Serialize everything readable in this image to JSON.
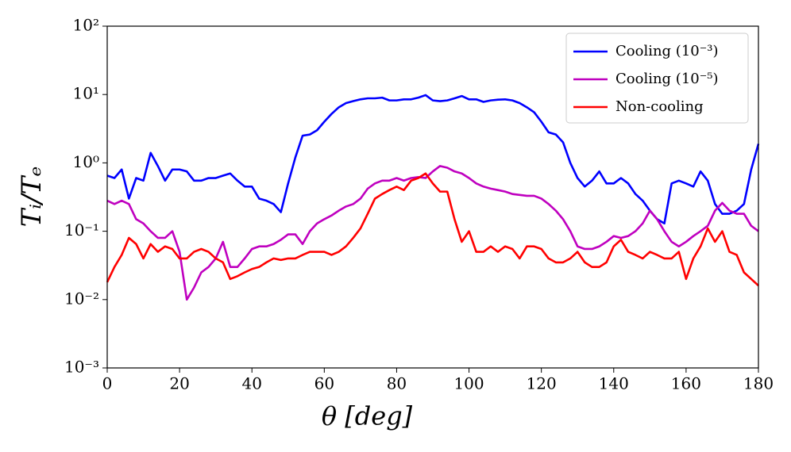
{
  "chart_data": {
    "type": "line",
    "x_label": "θ [deg]",
    "y_label": "Tᵢ/Tₑ",
    "x": [
      0,
      2,
      4,
      6,
      8,
      10,
      12,
      14,
      16,
      18,
      20,
      22,
      24,
      26,
      28,
      30,
      32,
      34,
      36,
      38,
      40,
      42,
      44,
      46,
      48,
      50,
      52,
      54,
      56,
      58,
      60,
      62,
      64,
      66,
      68,
      70,
      72,
      74,
      76,
      78,
      80,
      82,
      84,
      86,
      88,
      90,
      92,
      94,
      96,
      98,
      100,
      102,
      104,
      106,
      108,
      110,
      112,
      114,
      116,
      118,
      120,
      122,
      124,
      126,
      128,
      130,
      132,
      134,
      136,
      138,
      140,
      142,
      144,
      146,
      148,
      150,
      152,
      154,
      156,
      158,
      160,
      162,
      164,
      166,
      168,
      170,
      172,
      174,
      176,
      178,
      180
    ],
    "series": [
      {
        "name": "Cooling (10⁻³)",
        "color": "#0000ff",
        "values": [
          0.65,
          0.6,
          0.8,
          0.3,
          0.6,
          0.55,
          1.4,
          0.9,
          0.55,
          0.8,
          0.8,
          0.75,
          0.55,
          0.55,
          0.6,
          0.6,
          0.65,
          0.7,
          0.55,
          0.45,
          0.45,
          0.3,
          0.28,
          0.25,
          0.19,
          0.5,
          1.2,
          2.5,
          2.6,
          3.0,
          4.0,
          5.2,
          6.5,
          7.5,
          8.0,
          8.5,
          8.8,
          8.8,
          9.0,
          8.2,
          8.2,
          8.5,
          8.5,
          9.0,
          9.8,
          8.2,
          8.0,
          8.2,
          8.8,
          9.5,
          8.5,
          8.5,
          7.8,
          8.2,
          8.4,
          8.5,
          8.2,
          7.5,
          6.5,
          5.5,
          4.0,
          2.8,
          2.6,
          2.0,
          1.0,
          0.6,
          0.45,
          0.55,
          0.75,
          0.5,
          0.5,
          0.6,
          0.5,
          0.35,
          0.28,
          0.2,
          0.15,
          0.13,
          0.5,
          0.55,
          0.5,
          0.45,
          0.75,
          0.55,
          0.25,
          0.18,
          0.18,
          0.2,
          0.25,
          0.8,
          1.9
        ]
      },
      {
        "name": "Cooling (10⁻⁵)",
        "color": "#bf00bf",
        "values": [
          0.28,
          0.25,
          0.28,
          0.25,
          0.15,
          0.13,
          0.1,
          0.08,
          0.08,
          0.1,
          0.05,
          0.01,
          0.015,
          0.025,
          0.03,
          0.04,
          0.07,
          0.03,
          0.03,
          0.04,
          0.055,
          0.06,
          0.06,
          0.065,
          0.075,
          0.09,
          0.09,
          0.065,
          0.1,
          0.13,
          0.15,
          0.17,
          0.2,
          0.23,
          0.25,
          0.3,
          0.42,
          0.5,
          0.55,
          0.55,
          0.6,
          0.55,
          0.6,
          0.62,
          0.6,
          0.75,
          0.9,
          0.85,
          0.75,
          0.7,
          0.6,
          0.5,
          0.45,
          0.42,
          0.4,
          0.38,
          0.35,
          0.34,
          0.33,
          0.33,
          0.3,
          0.25,
          0.2,
          0.15,
          0.1,
          0.06,
          0.055,
          0.055,
          0.06,
          0.07,
          0.085,
          0.08,
          0.085,
          0.1,
          0.13,
          0.2,
          0.15,
          0.1,
          0.07,
          0.06,
          0.07,
          0.085,
          0.1,
          0.12,
          0.2,
          0.26,
          0.2,
          0.18,
          0.18,
          0.12,
          0.1
        ]
      },
      {
        "name": "Non-cooling",
        "color": "#ff0000",
        "values": [
          0.018,
          0.03,
          0.045,
          0.08,
          0.065,
          0.04,
          0.065,
          0.05,
          0.06,
          0.055,
          0.04,
          0.04,
          0.05,
          0.055,
          0.05,
          0.04,
          0.035,
          0.02,
          0.022,
          0.025,
          0.028,
          0.03,
          0.035,
          0.04,
          0.038,
          0.04,
          0.04,
          0.045,
          0.05,
          0.05,
          0.05,
          0.045,
          0.05,
          0.06,
          0.08,
          0.11,
          0.18,
          0.3,
          0.35,
          0.4,
          0.45,
          0.4,
          0.55,
          0.6,
          0.7,
          0.5,
          0.38,
          0.38,
          0.15,
          0.07,
          0.1,
          0.05,
          0.05,
          0.06,
          0.05,
          0.06,
          0.055,
          0.04,
          0.06,
          0.06,
          0.055,
          0.04,
          0.035,
          0.035,
          0.04,
          0.05,
          0.035,
          0.03,
          0.03,
          0.035,
          0.06,
          0.075,
          0.05,
          0.045,
          0.04,
          0.05,
          0.045,
          0.04,
          0.04,
          0.05,
          0.02,
          0.04,
          0.06,
          0.11,
          0.07,
          0.1,
          0.05,
          0.045,
          0.025,
          0.02,
          0.016
        ]
      }
    ],
    "xlim": [
      0,
      180
    ],
    "xticks": [
      0,
      20,
      40,
      60,
      80,
      100,
      120,
      140,
      160,
      180
    ],
    "ylim": [
      0.001,
      100
    ],
    "log_scale": true,
    "yticks": [
      {
        "value": 0.001,
        "label": "10⁻³"
      },
      {
        "value": 0.01,
        "label": "10⁻²"
      },
      {
        "value": 0.1,
        "label": "10⁻¹"
      },
      {
        "value": 1,
        "label": "10⁰"
      },
      {
        "value": 10,
        "label": "10¹"
      },
      {
        "value": 100,
        "label": "10²"
      }
    ],
    "legend": "upper right"
  }
}
